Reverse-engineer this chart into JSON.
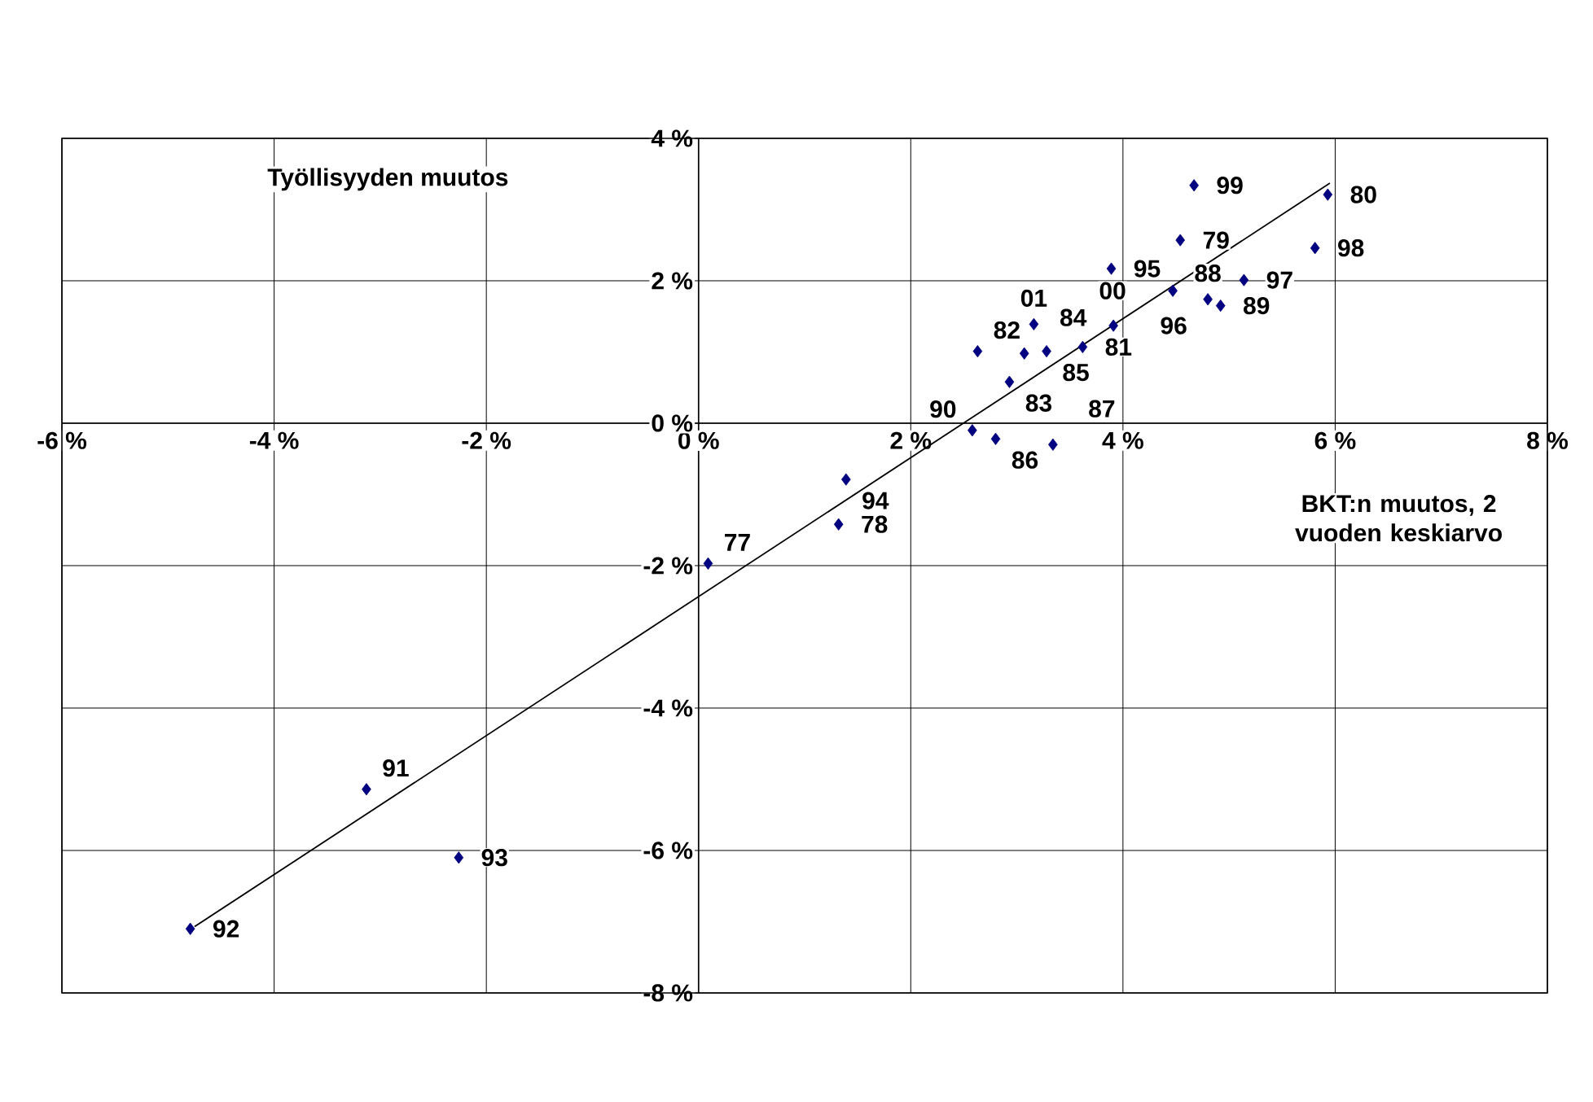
{
  "chart_data": {
    "type": "scatter",
    "xlabel": "BKT:n muutos, 2 vuoden keskiarvo",
    "ylabel": "Työllisyyden muutos",
    "xlim": [
      -6,
      8
    ],
    "ylim": [
      -8,
      4
    ],
    "xticks": [
      {
        "value": -6,
        "label": "-6 %"
      },
      {
        "value": -4,
        "label": "-4 %"
      },
      {
        "value": -2,
        "label": "-2 %"
      },
      {
        "value": 0,
        "label": "0 %"
      },
      {
        "value": 2,
        "label": "2 %"
      },
      {
        "value": 4,
        "label": "4 %"
      },
      {
        "value": 6,
        "label": "6 %"
      },
      {
        "value": 8,
        "label": "8 %"
      }
    ],
    "yticks": [
      {
        "value": -8,
        "label": "-8 %"
      },
      {
        "value": -6,
        "label": "-6 %"
      },
      {
        "value": -4,
        "label": "-4 %"
      },
      {
        "value": -2,
        "label": "-2 %"
      },
      {
        "value": 0,
        "label": "0 %"
      },
      {
        "value": 2,
        "label": "2 %"
      },
      {
        "value": 4,
        "label": "4 %"
      }
    ],
    "grid": true,
    "series": [
      {
        "marker": "diamond",
        "color": "#000080",
        "x": [
          0.09,
          1.32,
          4.54,
          5.93,
          3.62,
          2.63,
          2.93,
          3.07,
          3.28,
          2.8,
          3.34,
          4.8,
          4.92,
          2.58,
          -3.13,
          -4.79,
          -2.26,
          1.39,
          3.89,
          3.91,
          5.14,
          5.81,
          4.67,
          4.47,
          3.16
        ],
        "values": [
          -1.97,
          -1.42,
          2.57,
          3.21,
          1.07,
          1.01,
          0.58,
          0.98,
          1.01,
          -0.22,
          -0.3,
          1.74,
          1.65,
          -0.1,
          -5.14,
          -7.1,
          -6.1,
          -0.79,
          2.17,
          1.37,
          2.01,
          2.46,
          3.34,
          1.86,
          1.39
        ]
      },
      {
        "type": "line",
        "marker": "none",
        "color": "#000000",
        "x": [
          -4.75,
          5.95
        ],
        "values": [
          -7.07,
          3.37
        ]
      }
    ],
    "annotations": [
      {
        "text": "77",
        "x": 0.09,
        "y": -1.97
      },
      {
        "text": "78",
        "x": 1.32,
        "y": -1.42
      },
      {
        "text": "79",
        "x": 4.54,
        "y": 2.57
      },
      {
        "text": "80",
        "x": 5.93,
        "y": 3.21
      },
      {
        "text": "81",
        "x": 3.62,
        "y": 1.07
      },
      {
        "text": "82",
        "x": 2.63,
        "y": 1.01
      },
      {
        "text": "83",
        "x": 2.93,
        "y": 0.58
      },
      {
        "text": "84",
        "x": 3.07,
        "y": 0.98
      },
      {
        "text": "85",
        "x": 3.28,
        "y": 1.01
      },
      {
        "text": "86",
        "x": 2.8,
        "y": -0.22
      },
      {
        "text": "87",
        "x": 3.34,
        "y": -0.3
      },
      {
        "text": "88",
        "x": 4.8,
        "y": 1.74
      },
      {
        "text": "89",
        "x": 4.92,
        "y": 1.65
      },
      {
        "text": "90",
        "x": 2.58,
        "y": -0.1
      },
      {
        "text": "91",
        "x": -3.13,
        "y": -5.14
      },
      {
        "text": "92",
        "x": -4.79,
        "y": -7.1
      },
      {
        "text": "93",
        "x": -2.26,
        "y": -6.1
      },
      {
        "text": "94",
        "x": 1.39,
        "y": -0.79
      },
      {
        "text": "95",
        "x": 3.89,
        "y": 2.17
      },
      {
        "text": "96",
        "x": 3.91,
        "y": 1.37
      },
      {
        "text": "97",
        "x": 5.14,
        "y": 2.01
      },
      {
        "text": "98",
        "x": 5.81,
        "y": 2.46
      },
      {
        "text": "99",
        "x": 4.67,
        "y": 3.34
      },
      {
        "text": "00",
        "x": 4.47,
        "y": 1.86
      },
      {
        "text": "01",
        "x": 3.16,
        "y": 1.39
      }
    ]
  }
}
